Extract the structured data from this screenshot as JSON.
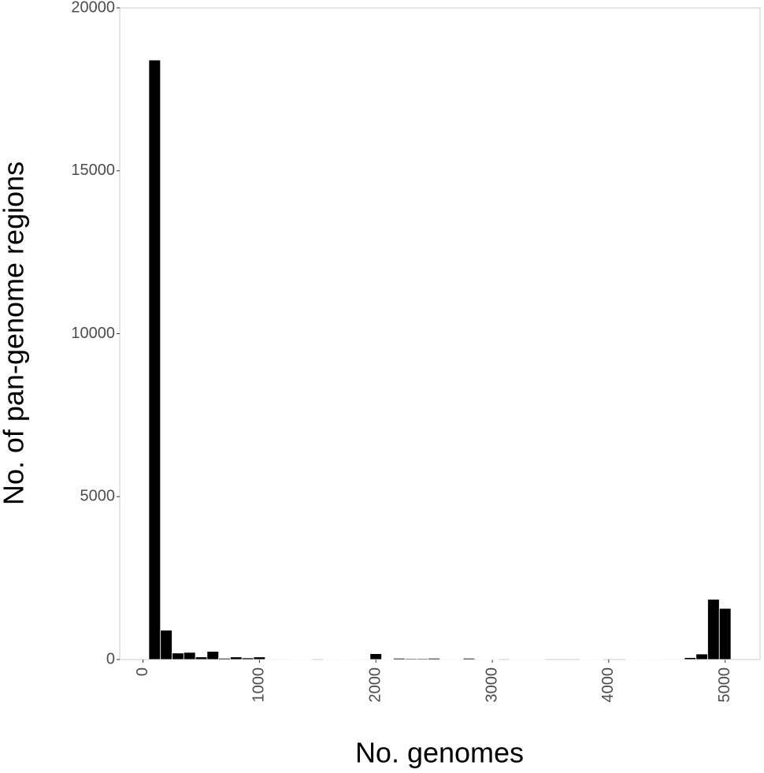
{
  "chart_data": {
    "type": "histogram",
    "x_label": "No. genomes",
    "y_label": "No. of pan-genome regions",
    "bins": [
      50,
      150,
      250,
      350,
      450,
      550,
      650,
      750,
      850,
      950,
      1050,
      1150,
      1250,
      1350,
      1450,
      1550,
      1650,
      1750,
      1850,
      1950,
      2050,
      2150,
      2250,
      2350,
      2450,
      2550,
      2650,
      2750,
      2850,
      2950,
      3050,
      3150,
      3250,
      3350,
      3450,
      3550,
      3650,
      3750,
      3850,
      3950,
      4050,
      4150,
      4250,
      4350,
      4450,
      4550,
      4650,
      4750,
      4850,
      4950,
      5050
    ],
    "values": [
      18400,
      900,
      200,
      220,
      80,
      250,
      40,
      80,
      50,
      80,
      20,
      20,
      10,
      10,
      0,
      5,
      10,
      15,
      20,
      180,
      10,
      40,
      30,
      30,
      40,
      20,
      15,
      40,
      10,
      10,
      0,
      2,
      2,
      2,
      0,
      0,
      0,
      5,
      3,
      0,
      0,
      10,
      15,
      15,
      20,
      20,
      60,
      170,
      1850,
      1570
    ],
    "color": "#000000",
    "xlim": [
      -200,
      5300
    ],
    "ylim": [
      0,
      20000
    ],
    "xticks": [
      0,
      1000,
      2000,
      3000,
      4000,
      5000
    ],
    "yticks": [
      0,
      5000,
      10000,
      15000,
      20000
    ]
  }
}
